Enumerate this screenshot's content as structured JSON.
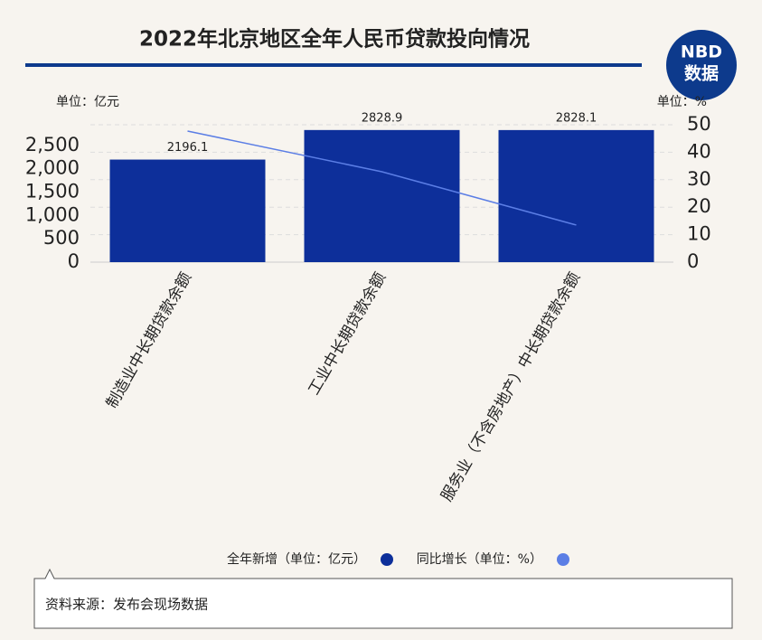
{
  "chart_data": {
    "type": "bar",
    "title": "2022年北京地区全年人民币贷款投向情况",
    "logo": {
      "top": "NBD",
      "bottom": "数据"
    },
    "y_unit": "单位：亿元",
    "y2_unit": "单位：%",
    "categories": [
      "制造业中长期贷款余额",
      "工业中长期贷款余额",
      "服务业（不含房地产）中长期贷款余额"
    ],
    "series": [
      {
        "name": "全年新增（单位：亿元）",
        "type": "bar",
        "color": "#0d2f9a",
        "values": [
          2196.1,
          2828.9,
          2828.1
        ]
      },
      {
        "name": "同比增长（单位：%）",
        "type": "line",
        "axis": "y2",
        "color": "#5b7ee5",
        "values": [
          47.7,
          32.9,
          13.5
        ]
      }
    ],
    "ylim": [
      0,
      3000
    ],
    "yticks": [
      0,
      500,
      {
        "value": 1000,
        "label": "1,000"
      },
      {
        "value": 1500,
        "label": "1,500"
      },
      {
        "value": 2000,
        "label": "2,000"
      },
      {
        "value": 2500,
        "label": "2,500"
      }
    ],
    "y2lim": [
      0,
      50
    ],
    "y2ticks": [
      0,
      10,
      20,
      30,
      40,
      50
    ],
    "grid": true,
    "legend": "bottom",
    "source": "资料来源：发布会现场数据"
  }
}
